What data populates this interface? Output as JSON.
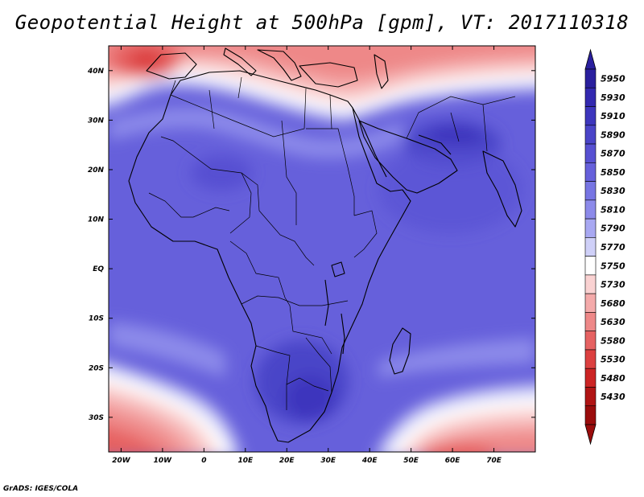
{
  "title": "Geopotential Height at 500hPa [gpm], VT: 2017110318",
  "credit": "GrADS: IGES/COLA",
  "map": {
    "variable": "500hPa geopotential height",
    "units": "gpm",
    "lon_range": [
      -23,
      80
    ],
    "lat_range": [
      -37,
      45
    ],
    "lon_ticks": [
      "20W",
      "10W",
      "0",
      "10E",
      "20E",
      "30E",
      "40E",
      "50E",
      "60E",
      "70E"
    ],
    "lon_tick_values": [
      -20,
      -10,
      0,
      10,
      20,
      30,
      40,
      50,
      60,
      70
    ],
    "lat_ticks": [
      "40N",
      "30N",
      "20N",
      "10N",
      "EQ",
      "10S",
      "20S",
      "30S"
    ],
    "lat_tick_values": [
      40,
      30,
      20,
      10,
      0,
      -10,
      -20,
      -30
    ]
  },
  "colorbar": {
    "labels": [
      "5950",
      "5930",
      "5910",
      "5890",
      "5870",
      "5850",
      "5830",
      "5810",
      "5790",
      "5770",
      "5750",
      "5730",
      "5680",
      "5630",
      "5580",
      "5530",
      "5480",
      "5430"
    ],
    "colors": [
      "#2a1f9e",
      "#3329b0",
      "#3d36bd",
      "#4a44c8",
      "#5750d2",
      "#6660db",
      "#7775e3",
      "#8c8aea",
      "#a8a8f2",
      "#cfd0f8",
      "#ffffff",
      "#fad2d2",
      "#f4aaaa",
      "#ee8888",
      "#e66262",
      "#dc4040",
      "#cc2424",
      "#b01414",
      "#9a0c0c"
    ],
    "top_arrow_color": "#2a1f9e",
    "bottom_arrow_color": "#9a0c0c"
  }
}
